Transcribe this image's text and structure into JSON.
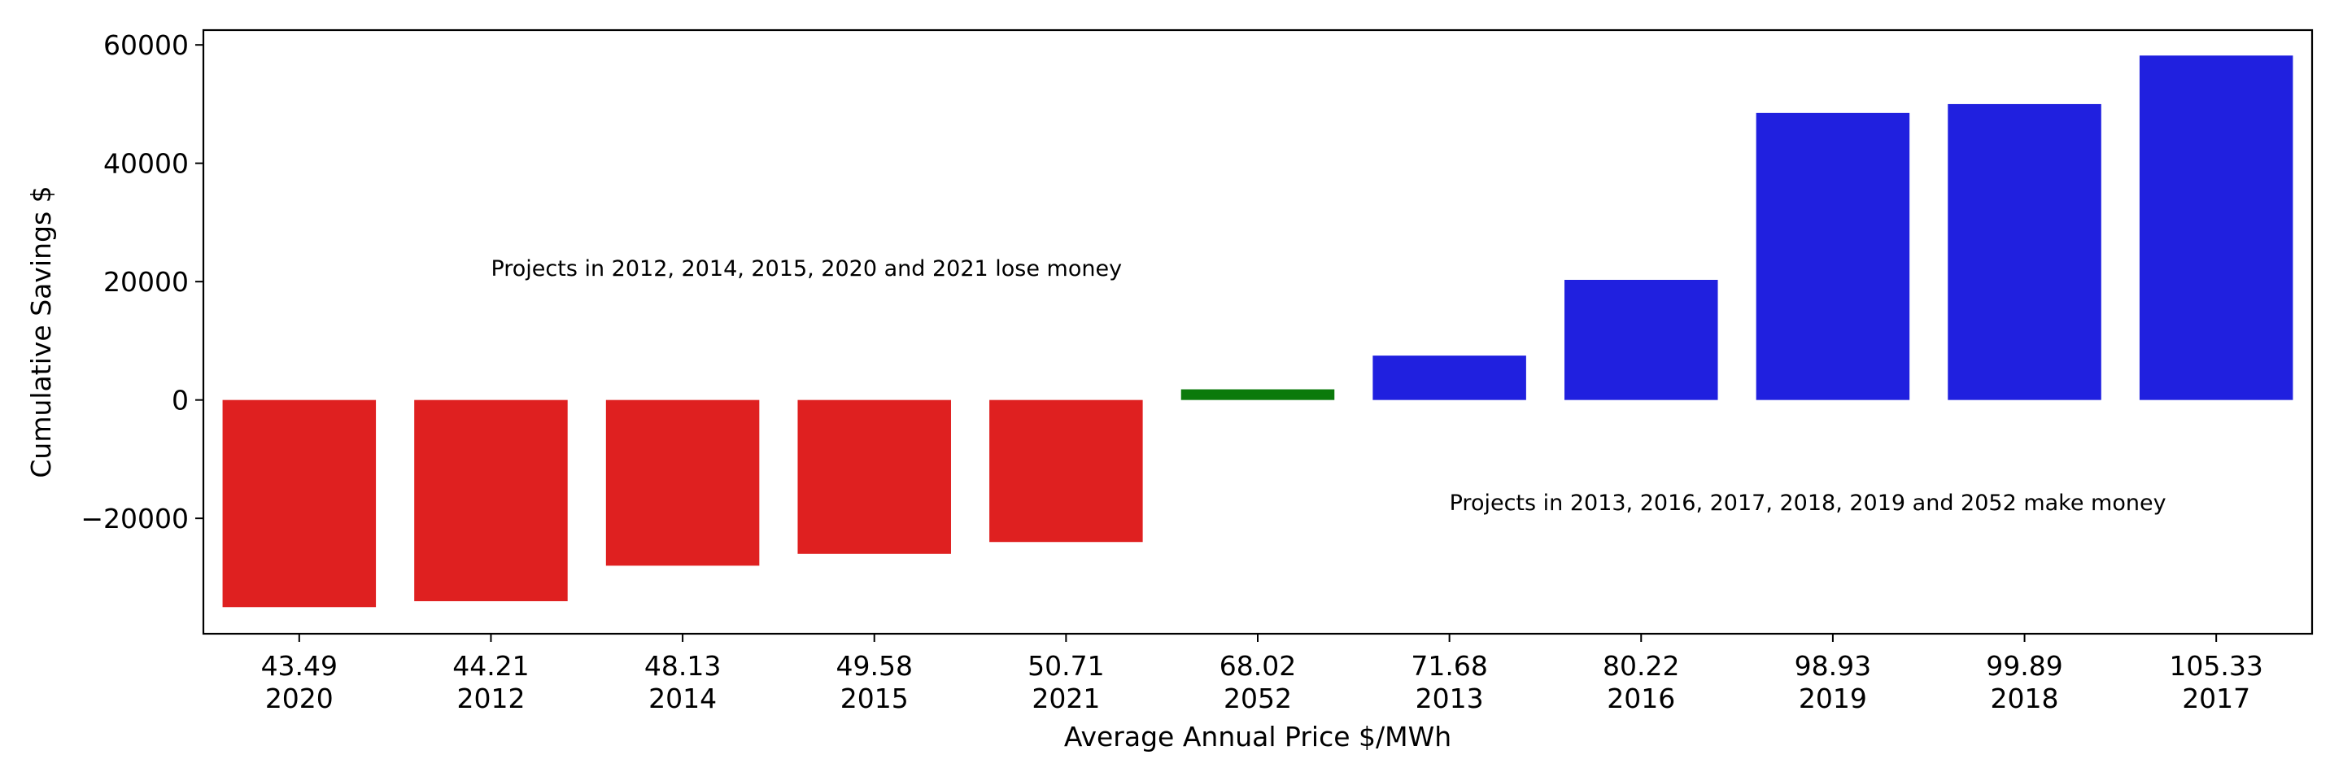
{
  "chart_data": {
    "type": "bar",
    "xlabel": "Average Annual Price $/MWh",
    "ylabel": "Cumulative Savings $",
    "ylim": [
      -39500,
      62500
    ],
    "yticks": [
      -20000,
      0,
      20000,
      40000,
      60000
    ],
    "ytick_labels": [
      "−20000",
      "0",
      "20000",
      "40000",
      "60000"
    ],
    "grid": false,
    "legend": "none",
    "categories": [
      {
        "price": "43.49",
        "year": "2020"
      },
      {
        "price": "44.21",
        "year": "2012"
      },
      {
        "price": "48.13",
        "year": "2014"
      },
      {
        "price": "49.58",
        "year": "2015"
      },
      {
        "price": "50.71",
        "year": "2021"
      },
      {
        "price": "68.02",
        "year": "2052"
      },
      {
        "price": "71.68",
        "year": "2013"
      },
      {
        "price": "80.22",
        "year": "2016"
      },
      {
        "price": "98.93",
        "year": "2019"
      },
      {
        "price": "99.89",
        "year": "2018"
      },
      {
        "price": "105.33",
        "year": "2017"
      }
    ],
    "values": [
      -35000,
      -34000,
      -28000,
      -26000,
      -24000,
      1800,
      7500,
      20300,
      48500,
      50000,
      58200
    ],
    "colors": [
      "#df2020",
      "#df2020",
      "#df2020",
      "#df2020",
      "#df2020",
      "#0b7a0b",
      "#2020df",
      "#2020df",
      "#2020df",
      "#2020df",
      "#2020df"
    ],
    "annotations": [
      {
        "text": "Projects in 2012, 2014, 2015, 2020 and 2021 lose money",
        "x_category": 1.0,
        "y": 21000
      },
      {
        "text": "Projects in 2013, 2016, 2017, 2018, 2019 and 2052 make money",
        "x_category": 6.0,
        "y": -18600
      }
    ]
  }
}
